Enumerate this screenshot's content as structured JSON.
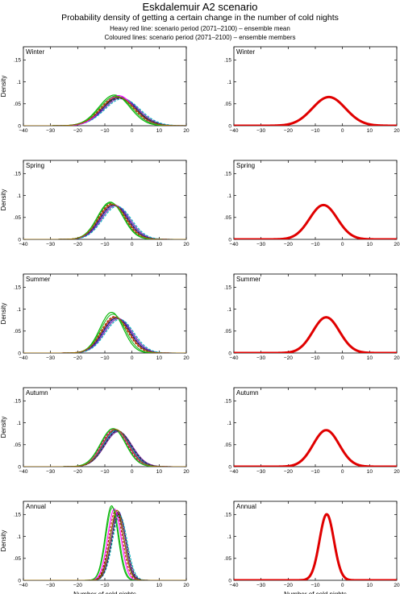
{
  "header": {
    "title": "Eskdalemuir A2 scenario",
    "subtitle": "Probability density of getting a certain change in the number of cold nights",
    "note_mean": "Heavy red line: scenario period (2071–2100) – ensemble mean",
    "note_members": "Coloured lines: scenario period (2071–2100) – ensemble members"
  },
  "colors": {
    "mean": "#e00000",
    "members": [
      "#000000",
      "#1f1fbf",
      "#c00000",
      "#00b300",
      "#7a2aa8",
      "#00b0c0",
      "#ff00ff",
      "#22bb22",
      "#333333",
      "#9a6a00"
    ]
  },
  "chart_data": [
    {
      "type": "line",
      "panel": "members",
      "title": "Winter",
      "xlabel": "",
      "ylabel": "Density",
      "xlim": [
        -40,
        20
      ],
      "ylim": [
        0,
        0.18
      ],
      "yticks": [
        0,
        0.05,
        0.1,
        0.15
      ],
      "xticks": [
        -40,
        -30,
        -20,
        -10,
        0,
        10,
        20
      ],
      "series": [
        {
          "mean": -5,
          "sd": 6.2
        },
        {
          "mean": -4.5,
          "sd": 6.1
        },
        {
          "mean": -5.5,
          "sd": 6.0
        },
        {
          "mean": -6.5,
          "sd": 5.7
        },
        {
          "mean": -4,
          "sd": 6.3
        },
        {
          "mean": -3.5,
          "sd": 6.5
        },
        {
          "mean": -5,
          "sd": 5.8
        },
        {
          "mean": -6,
          "sd": 5.9
        },
        {
          "mean": -4.8,
          "sd": 6.4
        },
        {
          "mean": -5.2,
          "sd": 6.1
        }
      ]
    },
    {
      "type": "line",
      "panel": "mean",
      "title": "Winter",
      "xlabel": "",
      "ylabel": "",
      "xlim": [
        -40,
        20
      ],
      "ylim": [
        0,
        0.18
      ],
      "yticks": [
        0,
        0.05,
        0.1,
        0.15
      ],
      "xticks": [
        -40,
        -30,
        -20,
        -10,
        0,
        10,
        20
      ],
      "series": [
        {
          "mean": -5,
          "sd": 6.1
        }
      ]
    },
    {
      "type": "line",
      "panel": "members",
      "title": "Spring",
      "xlabel": "",
      "ylabel": "Density",
      "xlim": [
        -40,
        20
      ],
      "ylim": [
        0,
        0.18
      ],
      "yticks": [
        0,
        0.05,
        0.1,
        0.15
      ],
      "xticks": [
        -40,
        -30,
        -20,
        -10,
        0,
        10,
        20
      ],
      "series": [
        {
          "mean": -7,
          "sd": 5.0
        },
        {
          "mean": -6.5,
          "sd": 5.1
        },
        {
          "mean": -7.5,
          "sd": 4.9
        },
        {
          "mean": -8,
          "sd": 4.7
        },
        {
          "mean": -6,
          "sd": 5.2
        },
        {
          "mean": -5.5,
          "sd": 5.3
        },
        {
          "mean": -7,
          "sd": 5.0
        },
        {
          "mean": -7.8,
          "sd": 4.8
        },
        {
          "mean": -6.8,
          "sd": 5.1
        },
        {
          "mean": -7.2,
          "sd": 5.0
        }
      ]
    },
    {
      "type": "line",
      "panel": "mean",
      "title": "Spring",
      "xlabel": "",
      "ylabel": "",
      "xlim": [
        -40,
        20
      ],
      "ylim": [
        0,
        0.18
      ],
      "yticks": [
        0,
        0.05,
        0.1,
        0.15
      ],
      "xticks": [
        -40,
        -30,
        -20,
        -10,
        0,
        10,
        20
      ],
      "series": [
        {
          "mean": -7,
          "sd": 5.1
        }
      ]
    },
    {
      "type": "line",
      "panel": "members",
      "title": "Summer",
      "xlabel": "",
      "ylabel": "Density",
      "xlim": [
        -40,
        20
      ],
      "ylim": [
        0,
        0.18
      ],
      "yticks": [
        0,
        0.05,
        0.1,
        0.15
      ],
      "xticks": [
        -40,
        -30,
        -20,
        -10,
        0,
        10,
        20
      ],
      "series": [
        {
          "mean": -6,
          "sd": 4.9
        },
        {
          "mean": -5.5,
          "sd": 5.0
        },
        {
          "mean": -6.5,
          "sd": 4.8
        },
        {
          "mean": -7.5,
          "sd": 4.3
        },
        {
          "mean": -5,
          "sd": 5.1
        },
        {
          "mean": -4.5,
          "sd": 5.2
        },
        {
          "mean": -6,
          "sd": 4.9
        },
        {
          "mean": -7,
          "sd": 4.5
        },
        {
          "mean": -5.8,
          "sd": 5.0
        },
        {
          "mean": -6.2,
          "sd": 4.9
        }
      ]
    },
    {
      "type": "line",
      "panel": "mean",
      "title": "Summer",
      "xlabel": "",
      "ylabel": "",
      "xlim": [
        -40,
        20
      ],
      "ylim": [
        0,
        0.18
      ],
      "yticks": [
        0,
        0.05,
        0.1,
        0.15
      ],
      "xticks": [
        -40,
        -30,
        -20,
        -10,
        0,
        10,
        20
      ],
      "series": [
        {
          "mean": -6,
          "sd": 4.9
        }
      ]
    },
    {
      "type": "line",
      "panel": "members",
      "title": "Autumn",
      "xlabel": "",
      "ylabel": "Density",
      "xlim": [
        -40,
        20
      ],
      "ylim": [
        0,
        0.18
      ],
      "yticks": [
        0,
        0.05,
        0.1,
        0.15
      ],
      "xticks": [
        -40,
        -30,
        -20,
        -10,
        0,
        10,
        20
      ],
      "series": [
        {
          "mean": -6,
          "sd": 4.8
        },
        {
          "mean": -5.5,
          "sd": 4.9
        },
        {
          "mean": -6.5,
          "sd": 4.7
        },
        {
          "mean": -7,
          "sd": 4.6
        },
        {
          "mean": -5,
          "sd": 5.0
        },
        {
          "mean": -5.8,
          "sd": 4.8
        },
        {
          "mean": -6.2,
          "sd": 4.7
        },
        {
          "mean": -6.8,
          "sd": 4.6
        },
        {
          "mean": -5.2,
          "sd": 4.9
        },
        {
          "mean": -6,
          "sd": 4.7
        }
      ]
    },
    {
      "type": "line",
      "panel": "mean",
      "title": "Autumn",
      "xlabel": "",
      "ylabel": "",
      "xlim": [
        -40,
        20
      ],
      "ylim": [
        0,
        0.18
      ],
      "yticks": [
        0,
        0.05,
        0.1,
        0.15
      ],
      "xticks": [
        -40,
        -30,
        -20,
        -10,
        0,
        10,
        20
      ],
      "series": [
        {
          "mean": -6,
          "sd": 4.8
        }
      ]
    },
    {
      "type": "line",
      "panel": "members",
      "title": "Annual",
      "xlabel": "Number of cold nights",
      "ylabel": "Density",
      "xlim": [
        -40,
        20
      ],
      "ylim": [
        0,
        0.18
      ],
      "yticks": [
        0,
        0.05,
        0.1,
        0.15
      ],
      "xticks": [
        -40,
        -30,
        -20,
        -10,
        0,
        10,
        20
      ],
      "series": [
        {
          "mean": -5.5,
          "sd": 2.6
        },
        {
          "mean": -5,
          "sd": 2.55
        },
        {
          "mean": -6,
          "sd": 2.5
        },
        {
          "mean": -7.5,
          "sd": 2.35
        },
        {
          "mean": -5,
          "sd": 2.6
        },
        {
          "mean": -4.5,
          "sd": 2.7
        },
        {
          "mean": -6.5,
          "sd": 2.45
        },
        {
          "mean": -7.2,
          "sd": 2.4
        },
        {
          "mean": -4.8,
          "sd": 2.65
        },
        {
          "mean": -5.5,
          "sd": 2.5
        }
      ]
    },
    {
      "type": "line",
      "panel": "mean",
      "title": "Annual",
      "xlabel": "Number of cold nights",
      "ylabel": "",
      "xlim": [
        -40,
        20
      ],
      "ylim": [
        0,
        0.18
      ],
      "yticks": [
        0,
        0.05,
        0.1,
        0.15
      ],
      "xticks": [
        -40,
        -30,
        -20,
        -10,
        0,
        10,
        20
      ],
      "series": [
        {
          "mean": -5.8,
          "sd": 2.65
        }
      ]
    }
  ]
}
